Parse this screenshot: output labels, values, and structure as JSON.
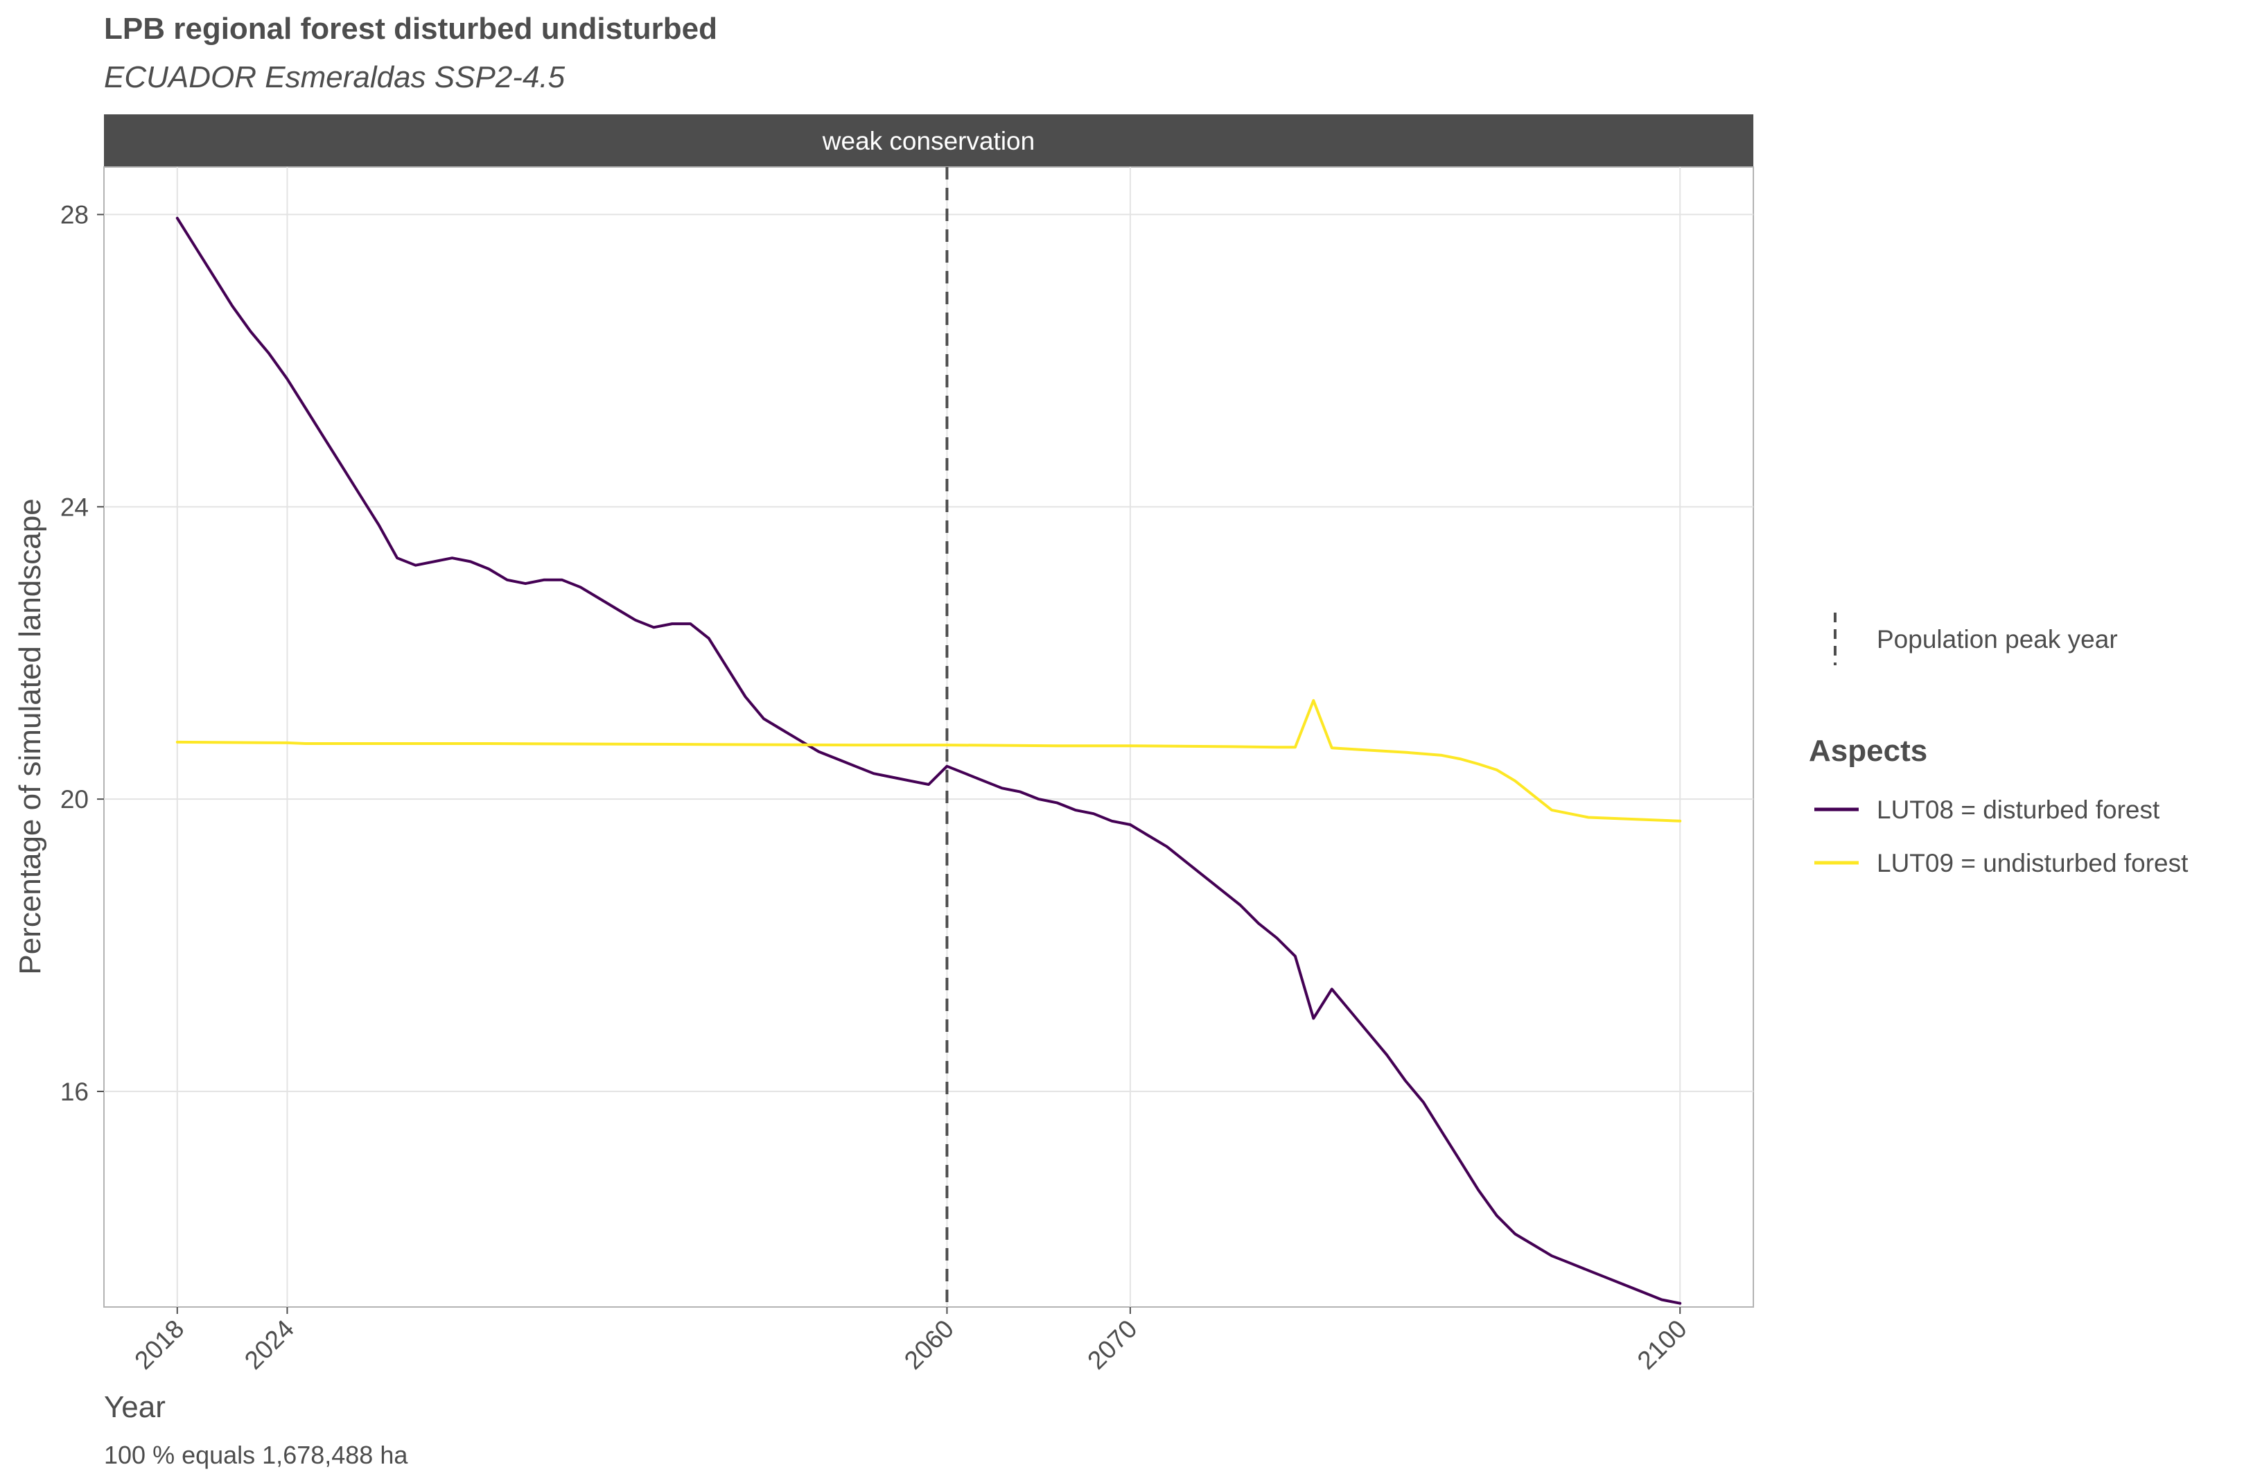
{
  "chart_data": {
    "type": "line",
    "title": "LPB regional forest disturbed undisturbed",
    "subtitle": "ECUADOR Esmeraldas SSP2-4.5",
    "facet_label": "weak conservation",
    "xlabel": "Year",
    "ylabel": "Percentage of simulated landscape",
    "caption": "100 % equals 1,678,488 ha",
    "x_ticks": [
      2018,
      2024,
      2060,
      2070,
      2100
    ],
    "y_ticks": [
      16,
      20,
      24,
      28
    ],
    "xlim": [
      2014,
      2104
    ],
    "ylim": [
      13.05,
      28.65
    ],
    "grid": true,
    "vline": {
      "x": 2060,
      "label": "Population peak year"
    },
    "legend": {
      "title": "Aspects",
      "position": "right"
    },
    "series": [
      {
        "name": "LUT08 = disturbed forest",
        "color": "#440154",
        "points": [
          [
            2018,
            27.95
          ],
          [
            2019,
            27.55
          ],
          [
            2020,
            27.15
          ],
          [
            2021,
            26.75
          ],
          [
            2022,
            26.4
          ],
          [
            2023,
            26.1
          ],
          [
            2024,
            25.75
          ],
          [
            2025,
            25.35
          ],
          [
            2026,
            24.95
          ],
          [
            2027,
            24.55
          ],
          [
            2028,
            24.15
          ],
          [
            2029,
            23.75
          ],
          [
            2030,
            23.3
          ],
          [
            2031,
            23.2
          ],
          [
            2032,
            23.25
          ],
          [
            2033,
            23.3
          ],
          [
            2034,
            23.25
          ],
          [
            2035,
            23.15
          ],
          [
            2036,
            23.0
          ],
          [
            2037,
            22.95
          ],
          [
            2038,
            23.0
          ],
          [
            2039,
            23.0
          ],
          [
            2040,
            22.9
          ],
          [
            2041,
            22.75
          ],
          [
            2042,
            22.6
          ],
          [
            2043,
            22.45
          ],
          [
            2044,
            22.35
          ],
          [
            2045,
            22.4
          ],
          [
            2046,
            22.4
          ],
          [
            2047,
            22.2
          ],
          [
            2048,
            21.8
          ],
          [
            2049,
            21.4
          ],
          [
            2050,
            21.1
          ],
          [
            2051,
            20.95
          ],
          [
            2052,
            20.8
          ],
          [
            2053,
            20.65
          ],
          [
            2054,
            20.55
          ],
          [
            2055,
            20.45
          ],
          [
            2056,
            20.35
          ],
          [
            2057,
            20.3
          ],
          [
            2058,
            20.25
          ],
          [
            2059,
            20.2
          ],
          [
            2060,
            20.45
          ],
          [
            2061,
            20.35
          ],
          [
            2062,
            20.25
          ],
          [
            2063,
            20.15
          ],
          [
            2064,
            20.1
          ],
          [
            2065,
            20.0
          ],
          [
            2066,
            19.95
          ],
          [
            2067,
            19.85
          ],
          [
            2068,
            19.8
          ],
          [
            2069,
            19.7
          ],
          [
            2070,
            19.65
          ],
          [
            2071,
            19.5
          ],
          [
            2072,
            19.35
          ],
          [
            2073,
            19.15
          ],
          [
            2074,
            18.95
          ],
          [
            2075,
            18.75
          ],
          [
            2076,
            18.55
          ],
          [
            2077,
            18.3
          ],
          [
            2078,
            18.1
          ],
          [
            2079,
            17.85
          ],
          [
            2080,
            17.0
          ],
          [
            2081,
            17.4
          ],
          [
            2082,
            17.1
          ],
          [
            2083,
            16.8
          ],
          [
            2084,
            16.5
          ],
          [
            2085,
            16.15
          ],
          [
            2086,
            15.85
          ],
          [
            2087,
            15.45
          ],
          [
            2088,
            15.05
          ],
          [
            2089,
            14.65
          ],
          [
            2090,
            14.3
          ],
          [
            2091,
            14.05
          ],
          [
            2092,
            13.9
          ],
          [
            2093,
            13.75
          ],
          [
            2094,
            13.65
          ],
          [
            2095,
            13.55
          ],
          [
            2096,
            13.45
          ],
          [
            2097,
            13.35
          ],
          [
            2098,
            13.25
          ],
          [
            2099,
            13.15
          ],
          [
            2100,
            13.1
          ]
        ]
      },
      {
        "name": "LUT09 = undisturbed forest",
        "color": "#fde725",
        "points": [
          [
            2018,
            20.78
          ],
          [
            2024,
            20.77
          ],
          [
            2025,
            20.76
          ],
          [
            2035,
            20.76
          ],
          [
            2045,
            20.75
          ],
          [
            2055,
            20.74
          ],
          [
            2060,
            20.74
          ],
          [
            2066,
            20.73
          ],
          [
            2070,
            20.73
          ],
          [
            2075,
            20.72
          ],
          [
            2078,
            20.71
          ],
          [
            2079,
            20.71
          ],
          [
            2080,
            21.35
          ],
          [
            2081,
            20.7
          ],
          [
            2083,
            20.67
          ],
          [
            2085,
            20.64
          ],
          [
            2087,
            20.6
          ],
          [
            2088,
            20.55
          ],
          [
            2089,
            20.48
          ],
          [
            2090,
            20.4
          ],
          [
            2091,
            20.25
          ],
          [
            2092,
            20.05
          ],
          [
            2093,
            19.85
          ],
          [
            2095,
            19.75
          ],
          [
            2100,
            19.7
          ]
        ]
      }
    ]
  }
}
